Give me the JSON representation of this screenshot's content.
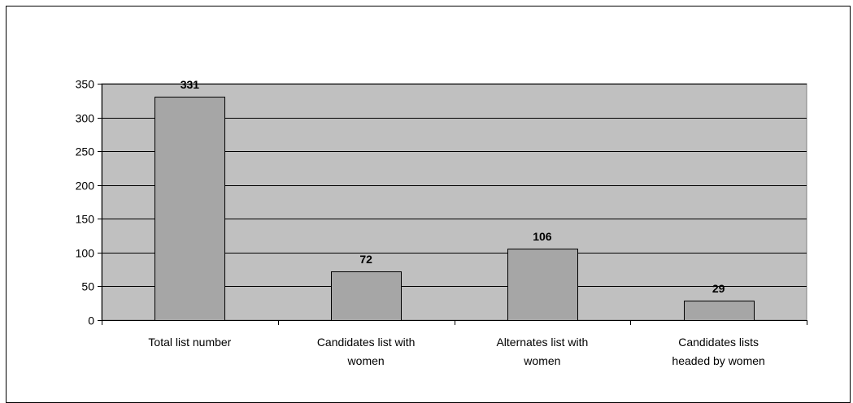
{
  "chart_data": {
    "type": "bar",
    "title": "",
    "xlabel": "",
    "ylabel": "",
    "categories": [
      [
        "Total list number"
      ],
      [
        "Candidates list with",
        "women"
      ],
      [
        "Alternates list with",
        "women"
      ],
      [
        "Candidates lists",
        "headed by women"
      ]
    ],
    "values": [
      331,
      72,
      106,
      29
    ],
    "data_labels": [
      "331",
      "72",
      "106",
      "29"
    ],
    "ylim": [
      0,
      350
    ],
    "yticks": [
      0,
      50,
      100,
      150,
      200,
      250,
      300,
      350
    ],
    "grid": "horizontal",
    "legend": "none",
    "colors": {
      "plot_background": "#c0c0c0",
      "bar_fill": "#a6a6a6",
      "bar_stroke": "#000000",
      "gridline": "#000000",
      "axis": "#000000"
    }
  }
}
